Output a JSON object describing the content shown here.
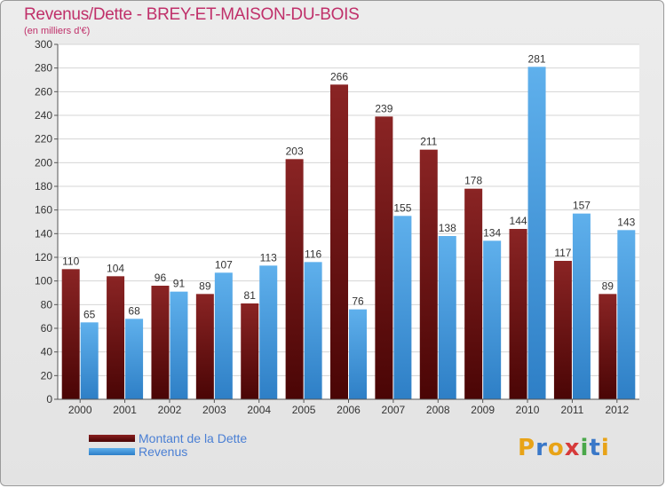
{
  "title": "Revenus/Dette - BREY-ET-MAISON-DU-BOIS",
  "subtitle": "(en milliers d'€)",
  "brand": {
    "text": "Proxiti",
    "letters": [
      "P",
      "r",
      "o",
      "x",
      "i",
      "t",
      "i"
    ],
    "colors": [
      "#e8a317",
      "#3a78c8",
      "#e8a317",
      "#d63a3a",
      "#4aa84a",
      "#3a78c8",
      "#e8a317"
    ]
  },
  "colors": {
    "debt_top": "#8a2424",
    "debt_bottom": "#4a0505",
    "rev_top": "#5fb0ec",
    "rev_bottom": "#2e7fc6",
    "title": "#c0306a",
    "legend_text": "#4a7fd4"
  },
  "chart_data": {
    "type": "bar",
    "title": "Revenus/Dette - BREY-ET-MAISON-DU-BOIS",
    "ylabel": "(en milliers d'€)",
    "xlabel": "",
    "ylim": [
      0,
      300
    ],
    "yticks": [
      0,
      20,
      40,
      60,
      80,
      100,
      120,
      140,
      160,
      180,
      200,
      220,
      240,
      260,
      280,
      300
    ],
    "grid": true,
    "legend_position": "bottom-left",
    "categories": [
      "2000",
      "2001",
      "2002",
      "2003",
      "2004",
      "2005",
      "2006",
      "2007",
      "2008",
      "2009",
      "2010",
      "2011",
      "2012"
    ],
    "series": [
      {
        "name": "Montant de la Dette",
        "values": [
          110,
          104,
          96,
          89,
          81,
          203,
          266,
          239,
          211,
          178,
          144,
          117,
          89
        ]
      },
      {
        "name": "Revenus",
        "values": [
          65,
          68,
          91,
          107,
          113,
          116,
          76,
          155,
          138,
          134,
          281,
          157,
          143
        ]
      }
    ]
  }
}
